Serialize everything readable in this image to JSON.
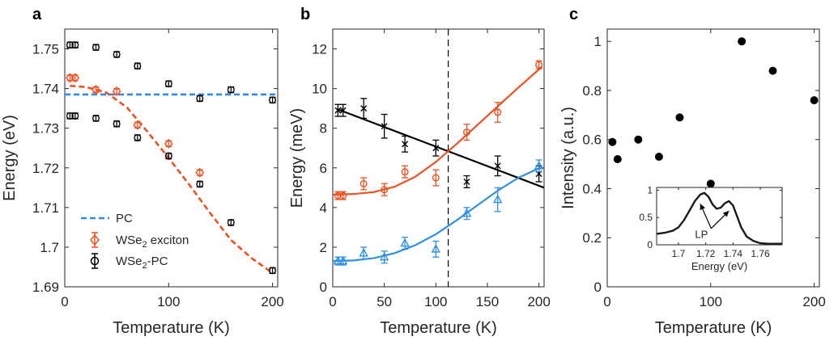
{
  "colors": {
    "black": "#000000",
    "orange": "#ED5121",
    "blue": "#2F90E6",
    "pcdash": "#2E8CE6",
    "axis": "#262626"
  },
  "chart_data": [
    {
      "panel": "a",
      "type": "scatter",
      "xlabel": "Temperature (K)",
      "ylabel": "Energy (eV)",
      "xlim": [
        0,
        205
      ],
      "ylim": [
        1.69,
        1.755
      ],
      "xticks": [
        0,
        100,
        200
      ],
      "xtick_labels": [
        "0",
        "100",
        "200"
      ],
      "yticks": [
        1.69,
        1.7,
        1.71,
        1.72,
        1.73,
        1.74,
        1.75
      ],
      "ytick_labels": [
        "1.69",
        "1.7",
        "1.71",
        "1.72",
        "1.73",
        "1.74",
        "1.75"
      ],
      "legend": [
        "PC",
        "WSe2 exciton",
        "WSe2-PC"
      ],
      "series": [
        {
          "name": "PC",
          "kind": "hline-dashed",
          "color": "#2E8CE6",
          "y": 1.7385
        },
        {
          "name": "WSe2 exciton",
          "kind": "points-diamond",
          "color": "#ED5121",
          "x": [
            5,
            10,
            30,
            50,
            70,
            100,
            130
          ],
          "y": [
            1.7427,
            1.7427,
            1.7397,
            1.7393,
            1.7308,
            1.7261,
            1.7188
          ]
        },
        {
          "name": "exciton fit",
          "kind": "fit-dashed",
          "color": "#ED5121",
          "x": [
            5,
            20,
            40,
            60,
            80,
            100,
            120,
            140,
            160,
            180,
            200
          ],
          "y": [
            1.7407,
            1.7404,
            1.739,
            1.7352,
            1.729,
            1.7225,
            1.7157,
            1.7086,
            1.7018,
            1.6972,
            1.6935
          ]
        },
        {
          "name": "WSe2-PC upper",
          "kind": "points-circle",
          "color": "#000000",
          "x": [
            5,
            10,
            30,
            50,
            70,
            100,
            130,
            160,
            200
          ],
          "y": [
            1.751,
            1.751,
            1.7504,
            1.7486,
            1.7457,
            1.7412,
            1.7375,
            1.7397,
            1.7371
          ]
        },
        {
          "name": "WSe2-PC lower",
          "kind": "points-circle",
          "color": "#000000",
          "x": [
            5,
            10,
            30,
            50,
            70,
            100,
            130,
            160,
            200
          ],
          "y": [
            1.7331,
            1.7331,
            1.7325,
            1.7311,
            1.7276,
            1.723,
            1.7159,
            1.7062,
            1.6941
          ]
        }
      ]
    },
    {
      "panel": "b",
      "type": "scatter",
      "xlabel": "Temperature (K)",
      "ylabel": "Energy (meV)",
      "xlim": [
        0,
        205
      ],
      "ylim": [
        0,
        13
      ],
      "xticks": [
        0,
        50,
        100,
        150,
        200
      ],
      "xtick_labels": [
        "0",
        "50",
        "100",
        "150",
        "200"
      ],
      "yticks": [
        0,
        2,
        4,
        6,
        8,
        10,
        12
      ],
      "ytick_labels": [
        "0",
        "2",
        "4",
        "6",
        "8",
        "10",
        "12"
      ],
      "vline": 112,
      "series": [
        {
          "name": "black x",
          "kind": "points-x",
          "color": "#000000",
          "x": [
            5,
            10,
            30,
            50,
            70,
            100,
            130,
            160,
            200
          ],
          "y": [
            8.9,
            8.9,
            9.0,
            8.1,
            7.2,
            7.0,
            5.3,
            6.1,
            5.7
          ],
          "err": [
            0.3,
            0.3,
            0.5,
            0.6,
            0.4,
            0.4,
            0.3,
            0.5,
            0.4
          ]
        },
        {
          "name": "orange circles",
          "kind": "points-circle",
          "color": "#ED5121",
          "x": [
            5,
            10,
            30,
            50,
            70,
            100,
            130,
            160,
            200
          ],
          "y": [
            4.6,
            4.6,
            5.2,
            4.9,
            5.8,
            5.5,
            7.8,
            8.8,
            11.2
          ],
          "err": [
            0.2,
            0.2,
            0.3,
            0.3,
            0.3,
            0.4,
            0.4,
            0.5,
            0.2
          ]
        },
        {
          "name": "blue triangles",
          "kind": "points-triangle",
          "color": "#2F90E6",
          "x": [
            5,
            10,
            30,
            50,
            70,
            100,
            130,
            160,
            200
          ],
          "y": [
            1.3,
            1.3,
            1.7,
            1.5,
            2.2,
            1.9,
            3.7,
            4.4,
            6.1
          ],
          "err": [
            0.2,
            0.2,
            0.3,
            0.3,
            0.3,
            0.4,
            0.3,
            0.6,
            0.3
          ]
        },
        {
          "name": "black fit",
          "kind": "fit-line",
          "color": "#000000",
          "x": [
            5,
            205
          ],
          "y": [
            8.95,
            5.0
          ]
        },
        {
          "name": "orange fit",
          "kind": "fit-line",
          "color": "#ED5121",
          "x": [
            0,
            20,
            40,
            60,
            80,
            100,
            120,
            140,
            160,
            180,
            203
          ],
          "y": [
            4.65,
            4.68,
            4.78,
            5.05,
            5.55,
            6.3,
            7.2,
            8.15,
            9.1,
            10.05,
            11.1
          ]
        },
        {
          "name": "blue fit",
          "kind": "fit-line",
          "color": "#2F90E6",
          "x": [
            0,
            20,
            40,
            60,
            80,
            100,
            120,
            140,
            160,
            180,
            203
          ],
          "y": [
            1.3,
            1.33,
            1.45,
            1.7,
            2.1,
            2.65,
            3.35,
            4.1,
            4.85,
            5.5,
            6.05
          ]
        }
      ]
    },
    {
      "panel": "c",
      "type": "scatter",
      "xlabel": "Temperature (K)",
      "ylabel": "Intensity (a.u.)",
      "xlim": [
        0,
        205
      ],
      "ylim": [
        0,
        1.05
      ],
      "xticks": [
        0,
        100,
        200
      ],
      "xtick_labels": [
        "0",
        "100",
        "200"
      ],
      "yticks": [
        0,
        0.2,
        0.4,
        0.6,
        0.8,
        1.0
      ],
      "ytick_labels": [
        "0",
        "0.2",
        "0.4",
        "0.6",
        "0.8",
        "1"
      ],
      "series": [
        {
          "name": "intensity",
          "kind": "points-filled",
          "color": "#000000",
          "x": [
            5,
            10,
            30,
            50,
            70,
            100,
            130,
            160,
            200
          ],
          "y": [
            0.59,
            0.52,
            0.6,
            0.53,
            0.69,
            0.42,
            1.0,
            0.88,
            0.76
          ]
        }
      ],
      "inset": {
        "type": "line",
        "xlabel": "Energy (eV)",
        "xlim": [
          1.684,
          1.776
        ],
        "ylim": [
          0,
          1.05
        ],
        "xticks": [
          1.7,
          1.72,
          1.74,
          1.76
        ],
        "xtick_labels": [
          "1.7",
          "1.72",
          "1.74",
          "1.76"
        ],
        "yticks": [
          0,
          0.5,
          1.0
        ],
        "ytick_labels": [
          "0",
          "0.5",
          "1"
        ],
        "annotation": "LP",
        "annotation_targets": [
          [
            1.716,
            0.75
          ],
          [
            1.737,
            0.62
          ]
        ],
        "annotation_anchor": [
          1.724,
          0.3
        ],
        "spectrum": {
          "x": [
            1.684,
            1.69,
            1.696,
            1.7,
            1.704,
            1.708,
            1.712,
            1.716,
            1.719,
            1.722,
            1.725,
            1.728,
            1.731,
            1.734,
            1.737,
            1.74,
            1.743,
            1.746,
            1.75,
            1.755,
            1.76,
            1.766,
            1.776
          ],
          "y": [
            0.2,
            0.22,
            0.26,
            0.32,
            0.45,
            0.62,
            0.8,
            0.92,
            0.95,
            0.88,
            0.74,
            0.66,
            0.68,
            0.76,
            0.8,
            0.72,
            0.52,
            0.32,
            0.15,
            0.07,
            0.03,
            0.02,
            0.02
          ]
        }
      }
    }
  ],
  "panel_labels": [
    "a",
    "b",
    "c"
  ]
}
